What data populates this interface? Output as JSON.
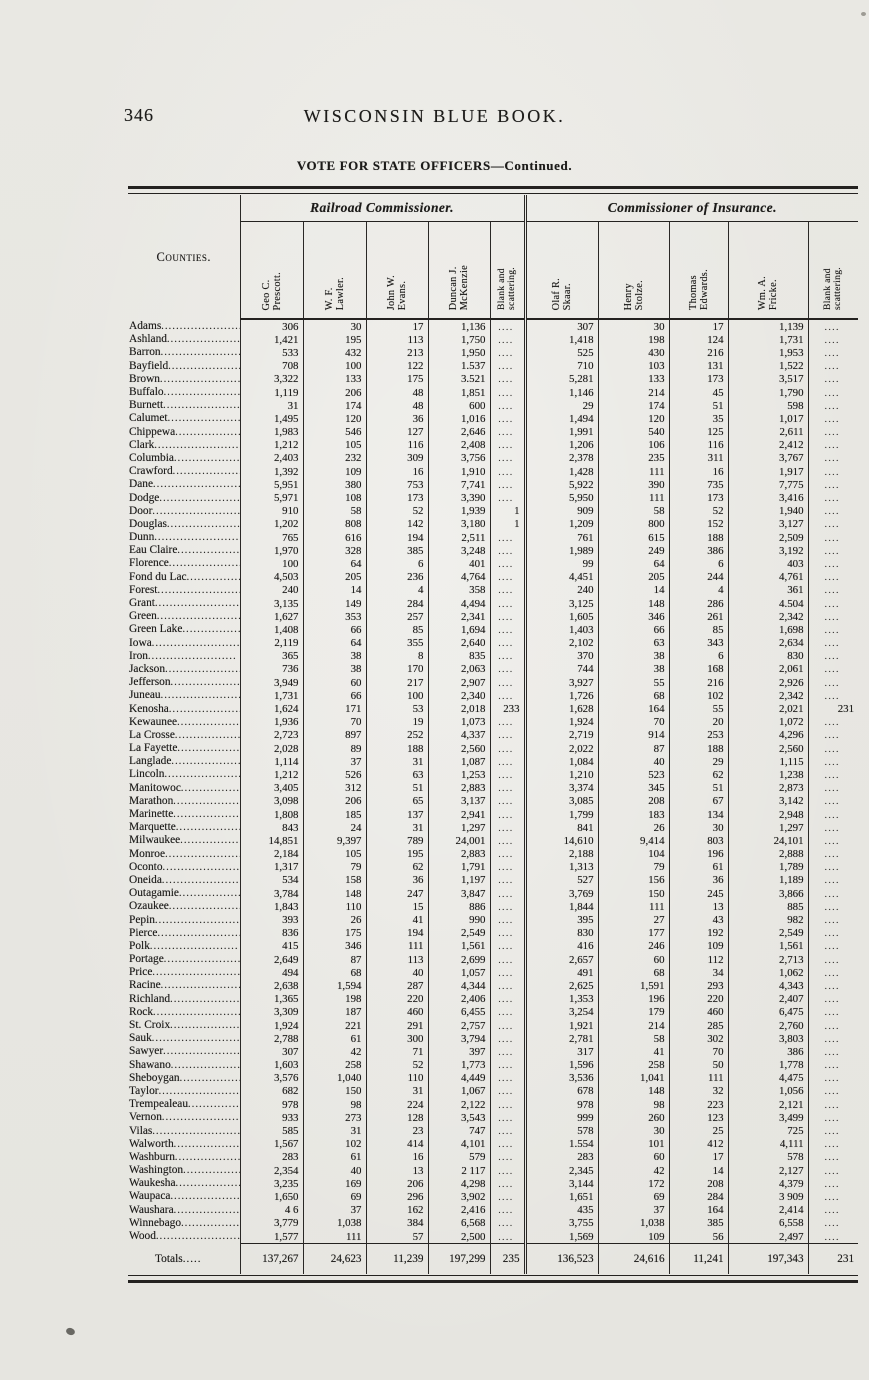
{
  "page": {
    "number": "346",
    "book_title": "WISCONSIN BLUE BOOK.",
    "table_title": "VOTE FOR STATE OFFICERS—Continued."
  },
  "table": {
    "counties_header": "Counties.",
    "blank_placeholder": "....",
    "groups": [
      {
        "label": "Railroad Commissioner."
      },
      {
        "label": "Commissioner of Insurance."
      }
    ],
    "columns": [
      {
        "label": "Geo C.\nPrescott."
      },
      {
        "label": "W. F.\nLawler."
      },
      {
        "label": "John W.\nEvans."
      },
      {
        "label": "Duncan J.\nMcKenzie"
      },
      {
        "label": "Blank and\nscattering."
      },
      {
        "label": "Olaf R.\nSkaar."
      },
      {
        "label": "Henry\nStolze."
      },
      {
        "label": "Thomas\nEdwards."
      },
      {
        "label": "Wm. A.\nFricke."
      },
      {
        "label": "Blank and\nscattering."
      }
    ],
    "rows": [
      {
        "county": "Adams",
        "values": [
          "306",
          "30",
          "17",
          "1,136",
          "",
          "307",
          "30",
          "17",
          "1,139",
          ""
        ]
      },
      {
        "county": "Ashland",
        "values": [
          "1,421",
          "195",
          "113",
          "1,750",
          "",
          "1,418",
          "198",
          "124",
          "1,731",
          ""
        ]
      },
      {
        "county": "Barron",
        "values": [
          "533",
          "432",
          "213",
          "1,950",
          "",
          "525",
          "430",
          "216",
          "1,953",
          ""
        ]
      },
      {
        "county": "Bayfield",
        "values": [
          "708",
          "100",
          "122",
          "1.537",
          "",
          "710",
          "103",
          "131",
          "1,522",
          ""
        ]
      },
      {
        "county": "Brown",
        "values": [
          "3,322",
          "133",
          "175",
          "3.521",
          "",
          "5,281",
          "133",
          "173",
          "3,517",
          ""
        ]
      },
      {
        "county": "Buffalo",
        "values": [
          "1,119",
          "206",
          "48",
          "1,851",
          "",
          "1,146",
          "214",
          "45",
          "1,790",
          ""
        ]
      },
      {
        "county": "Burnett",
        "values": [
          "31",
          "174",
          "48",
          "600",
          "",
          "29",
          "174",
          "51",
          "598",
          ""
        ]
      },
      {
        "county": "Calumet",
        "values": [
          "1,495",
          "120",
          "36",
          "1,016",
          "",
          "1,494",
          "120",
          "35",
          "1,017",
          ""
        ]
      },
      {
        "county": "Chippewa",
        "values": [
          "1,983",
          "546",
          "127",
          "2,646",
          "",
          "1,991",
          "540",
          "125",
          "2,611",
          ""
        ]
      },
      {
        "county": "Clark",
        "values": [
          "1,212",
          "105",
          "116",
          "2,408",
          "",
          "1,206",
          "106",
          "116",
          "2,412",
          ""
        ]
      },
      {
        "county": "Columbia",
        "values": [
          "2,403",
          "232",
          "309",
          "3,756",
          "",
          "2,378",
          "235",
          "311",
          "3,767",
          ""
        ]
      },
      {
        "county": "Crawford",
        "values": [
          "1,392",
          "109",
          "16",
          "1,910",
          "",
          "1,428",
          "111",
          "16",
          "1,917",
          ""
        ]
      },
      {
        "county": "Dane",
        "values": [
          "5,951",
          "380",
          "753",
          "7,741",
          "",
          "5,922",
          "390",
          "735",
          "7,775",
          ""
        ]
      },
      {
        "county": "Dodge",
        "values": [
          "5,971",
          "108",
          "173",
          "3,390",
          "",
          "5,950",
          "111",
          "173",
          "3,416",
          ""
        ]
      },
      {
        "county": "Door",
        "values": [
          "910",
          "58",
          "52",
          "1,939",
          "1",
          "909",
          "58",
          "52",
          "1,940",
          ""
        ]
      },
      {
        "county": "Douglas",
        "values": [
          "1,202",
          "808",
          "142",
          "3,180",
          "1",
          "1,209",
          "800",
          "152",
          "3,127",
          ""
        ]
      },
      {
        "county": "Dunn",
        "values": [
          "765",
          "616",
          "194",
          "2,511",
          "",
          "761",
          "615",
          "188",
          "2,509",
          ""
        ]
      },
      {
        "county": "Eau Claire",
        "values": [
          "1,970",
          "328",
          "385",
          "3,248",
          "",
          "1,989",
          "249",
          "386",
          "3,192",
          ""
        ]
      },
      {
        "county": "Florence",
        "values": [
          "100",
          "64",
          "6",
          "401",
          "",
          "99",
          "64",
          "6",
          "403",
          ""
        ]
      },
      {
        "county": "Fond du Lac",
        "values": [
          "4,503",
          "205",
          "236",
          "4,764",
          "",
          "4,451",
          "205",
          "244",
          "4,761",
          ""
        ]
      },
      {
        "county": "Forest",
        "values": [
          "240",
          "14",
          "4",
          "358",
          "",
          "240",
          "14",
          "4",
          "361",
          ""
        ]
      },
      {
        "county": "Grant",
        "values": [
          "3,135",
          "149",
          "284",
          "4,494",
          "",
          "3,125",
          "148",
          "286",
          "4.504",
          ""
        ]
      },
      {
        "county": "Green",
        "values": [
          "1,627",
          "353",
          "257",
          "2,341",
          "",
          "1,605",
          "346",
          "261",
          "2,342",
          ""
        ]
      },
      {
        "county": "Green Lake",
        "values": [
          "1,408",
          "66",
          "85",
          "1,694",
          "",
          "1,403",
          "66",
          "85",
          "1,698",
          ""
        ]
      },
      {
        "county": "Iowa",
        "values": [
          "2,119",
          "64",
          "355",
          "2,640",
          "",
          "2,102",
          "63",
          "343",
          "2,634",
          ""
        ]
      },
      {
        "county": "Iron",
        "values": [
          "365",
          "38",
          "8",
          "835",
          "",
          "370",
          "38",
          "6",
          "830",
          ""
        ]
      },
      {
        "county": "Jackson",
        "values": [
          "736",
          "38",
          "170",
          "2,063",
          "",
          "744",
          "38",
          "168",
          "2,061",
          ""
        ]
      },
      {
        "county": "Jefferson",
        "values": [
          "3,949",
          "60",
          "217",
          "2,907",
          "",
          "3,927",
          "55",
          "216",
          "2,926",
          ""
        ]
      },
      {
        "county": "Juneau",
        "values": [
          "1,731",
          "66",
          "100",
          "2,340",
          "",
          "1,726",
          "68",
          "102",
          "2,342",
          ""
        ]
      },
      {
        "county": "Kenosha",
        "values": [
          "1,624",
          "171",
          "53",
          "2,018",
          "233",
          "1,628",
          "164",
          "55",
          "2,021",
          "231"
        ]
      },
      {
        "county": "Kewaunee",
        "values": [
          "1,936",
          "70",
          "19",
          "1,073",
          "",
          "1,924",
          "70",
          "20",
          "1,072",
          ""
        ]
      },
      {
        "county": "La Crosse",
        "values": [
          "2,723",
          "897",
          "252",
          "4,337",
          "",
          "2,719",
          "914",
          "253",
          "4,296",
          ""
        ]
      },
      {
        "county": "La Fayette",
        "values": [
          "2,028",
          "89",
          "188",
          "2,560",
          "",
          "2,022",
          "87",
          "188",
          "2,560",
          ""
        ]
      },
      {
        "county": "Langlade",
        "values": [
          "1,114",
          "37",
          "31",
          "1,087",
          "",
          "1,084",
          "40",
          "29",
          "1,115",
          ""
        ]
      },
      {
        "county": "Lincoln",
        "values": [
          "1,212",
          "526",
          "63",
          "1,253",
          "",
          "1,210",
          "523",
          "62",
          "1,238",
          ""
        ]
      },
      {
        "county": "Manitowoc",
        "values": [
          "3,405",
          "312",
          "51",
          "2,883",
          "",
          "3,374",
          "345",
          "51",
          "2,873",
          ""
        ]
      },
      {
        "county": "Marathon",
        "values": [
          "3,098",
          "206",
          "65",
          "3,137",
          "",
          "3,085",
          "208",
          "67",
          "3,142",
          ""
        ]
      },
      {
        "county": "Marinette",
        "values": [
          "1,808",
          "185",
          "137",
          "2,941",
          "",
          "1,799",
          "183",
          "134",
          "2,948",
          ""
        ]
      },
      {
        "county": "Marquette",
        "values": [
          "843",
          "24",
          "31",
          "1,297",
          "",
          "841",
          "26",
          "30",
          "1,297",
          ""
        ]
      },
      {
        "county": "Milwaukee",
        "values": [
          "14,851",
          "9,397",
          "789",
          "24,001",
          "",
          "14,610",
          "9,414",
          "803",
          "24,101",
          ""
        ]
      },
      {
        "county": "Monroe",
        "values": [
          "2,184",
          "105",
          "195",
          "2,883",
          "",
          "2,188",
          "104",
          "196",
          "2,888",
          ""
        ]
      },
      {
        "county": "Oconto",
        "values": [
          "1,317",
          "79",
          "62",
          "1,791",
          "",
          "1,313",
          "79",
          "61",
          "1,789",
          ""
        ]
      },
      {
        "county": "Oneida",
        "values": [
          "534",
          "158",
          "36",
          "1,197",
          "",
          "527",
          "156",
          "36",
          "1,189",
          ""
        ]
      },
      {
        "county": "Outagamie",
        "values": [
          "3,784",
          "148",
          "247",
          "3,847",
          "",
          "3,769",
          "150",
          "245",
          "3,866",
          ""
        ]
      },
      {
        "county": "Ozaukee",
        "values": [
          "1,843",
          "110",
          "15",
          "886",
          "",
          "1,844",
          "111",
          "13",
          "885",
          ""
        ]
      },
      {
        "county": "Pepin",
        "values": [
          "393",
          "26",
          "41",
          "990",
          "",
          "395",
          "27",
          "43",
          "982",
          ""
        ]
      },
      {
        "county": "Pierce",
        "values": [
          "836",
          "175",
          "194",
          "2,549",
          "",
          "830",
          "177",
          "192",
          "2,549",
          ""
        ]
      },
      {
        "county": "Polk",
        "values": [
          "415",
          "346",
          "111",
          "1,561",
          "",
          "416",
          "246",
          "109",
          "1,561",
          ""
        ]
      },
      {
        "county": "Portage",
        "values": [
          "2,649",
          "87",
          "113",
          "2,699",
          "",
          "2,657",
          "60",
          "112",
          "2,713",
          ""
        ]
      },
      {
        "county": "Price",
        "values": [
          "494",
          "68",
          "40",
          "1,057",
          "",
          "491",
          "68",
          "34",
          "1,062",
          ""
        ]
      },
      {
        "county": "Racine",
        "values": [
          "2,638",
          "1,594",
          "287",
          "4,344",
          "",
          "2,625",
          "1,591",
          "293",
          "4,343",
          ""
        ]
      },
      {
        "county": "Richland",
        "values": [
          "1,365",
          "198",
          "220",
          "2,406",
          "",
          "1,353",
          "196",
          "220",
          "2,407",
          ""
        ]
      },
      {
        "county": "Rock",
        "values": [
          "3,309",
          "187",
          "460",
          "6,455",
          "",
          "3,254",
          "179",
          "460",
          "6,475",
          ""
        ]
      },
      {
        "county": "St. Croix",
        "values": [
          "1,924",
          "221",
          "291",
          "2,757",
          "",
          "1,921",
          "214",
          "285",
          "2,760",
          ""
        ]
      },
      {
        "county": "Sauk",
        "values": [
          "2,788",
          "61",
          "300",
          "3,794",
          "",
          "2,781",
          "58",
          "302",
          "3,803",
          ""
        ]
      },
      {
        "county": "Sawyer",
        "values": [
          "307",
          "42",
          "71",
          "397",
          "",
          "317",
          "41",
          "70",
          "386",
          ""
        ]
      },
      {
        "county": "Shawano",
        "values": [
          "1,603",
          "258",
          "52",
          "1,773",
          "",
          "1,596",
          "258",
          "50",
          "1,778",
          ""
        ]
      },
      {
        "county": "Sheboygan",
        "values": [
          "3,576",
          "1,040",
          "110",
          "4,449",
          "",
          "3,536",
          "1,041",
          "111",
          "4,475",
          ""
        ]
      },
      {
        "county": "Taylor",
        "values": [
          "682",
          "150",
          "31",
          "1,067",
          "",
          "678",
          "148",
          "32",
          "1,056",
          ""
        ]
      },
      {
        "county": "Trempealeau",
        "values": [
          "978",
          "98",
          "224",
          "2,122",
          "",
          "978",
          "98",
          "223",
          "2,121",
          ""
        ]
      },
      {
        "county": "Vernon",
        "values": [
          "933",
          "273",
          "128",
          "3,543",
          "",
          "999",
          "260",
          "123",
          "3,499",
          ""
        ]
      },
      {
        "county": "Vilas",
        "values": [
          "585",
          "31",
          "23",
          "747",
          "",
          "578",
          "30",
          "25",
          "725",
          ""
        ]
      },
      {
        "county": "Walworth",
        "values": [
          "1,567",
          "102",
          "414",
          "4,101",
          "",
          "1.554",
          "101",
          "412",
          "4,111",
          ""
        ]
      },
      {
        "county": "Washburn",
        "values": [
          "283",
          "61",
          "16",
          "579",
          "",
          "283",
          "60",
          "17",
          "578",
          ""
        ]
      },
      {
        "county": "Washington",
        "values": [
          "2,354",
          "40",
          "13",
          "2 117",
          "",
          "2,345",
          "42",
          "14",
          "2,127",
          ""
        ]
      },
      {
        "county": "Waukesha",
        "values": [
          "3,235",
          "169",
          "206",
          "4,298",
          "",
          "3,144",
          "172",
          "208",
          "4,379",
          ""
        ]
      },
      {
        "county": "Waupaca",
        "values": [
          "1,650",
          "69",
          "296",
          "3,902",
          "",
          "1,651",
          "69",
          "284",
          "3 909",
          ""
        ]
      },
      {
        "county": "Waushara",
        "values": [
          "4 6",
          "37",
          "162",
          "2,416",
          "",
          "435",
          "37",
          "164",
          "2,414",
          ""
        ]
      },
      {
        "county": "Winnebago",
        "values": [
          "3,779",
          "1,038",
          "384",
          "6,568",
          "",
          "3,755",
          "1,038",
          "385",
          "6,558",
          ""
        ]
      },
      {
        "county": "Wood",
        "values": [
          "1,577",
          "111",
          "57",
          "2,500",
          "",
          "1,569",
          "109",
          "56",
          "2,497",
          ""
        ]
      }
    ],
    "totals": {
      "label": "Totals",
      "values": [
        "137,267",
        "24,623",
        "11,239",
        "197,299",
        "235",
        "136,523",
        "24,616",
        "11,241",
        "197,343",
        "231"
      ]
    }
  }
}
